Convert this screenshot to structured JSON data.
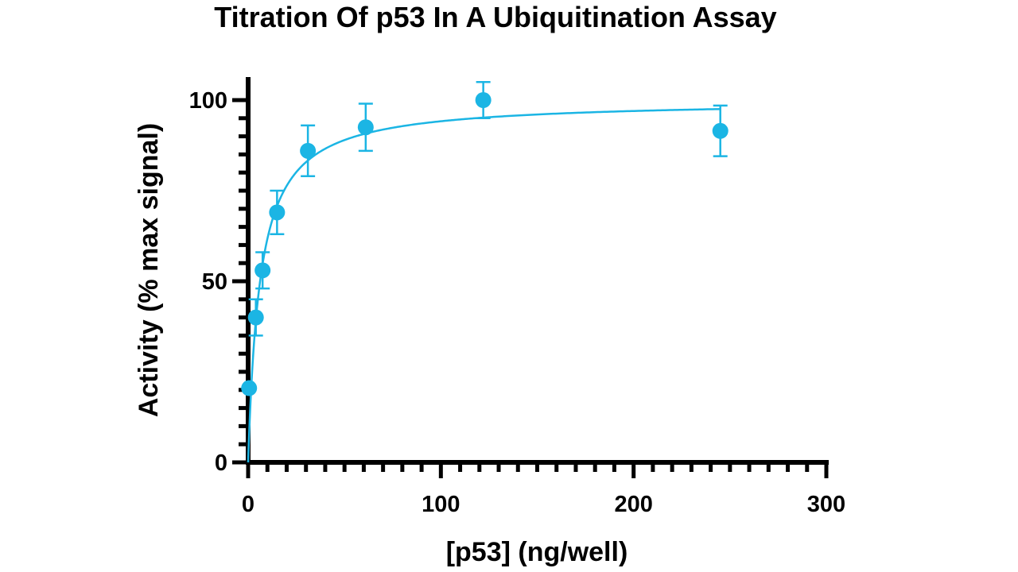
{
  "chart_data": {
    "type": "scatter",
    "title": "Titration Of p53 In A Ubiquitination Assay",
    "xlabel": "[p53] (ng/well)",
    "ylabel": "Activity (% max signal)",
    "xlim": [
      0,
      300
    ],
    "ylim": [
      0,
      100
    ],
    "x_ticks": [
      0,
      100,
      200,
      300
    ],
    "y_ticks": [
      0,
      50,
      100
    ],
    "x_tick_labels": [
      "0",
      "100",
      "200",
      "300"
    ],
    "y_tick_labels": [
      "0",
      "50",
      "100"
    ],
    "x_minor_step": 10,
    "y_minor_step": 5,
    "grid": false,
    "legend": "none",
    "color": "#1bb5e4",
    "points": [
      {
        "x": 0.5,
        "y": 20.5,
        "err": 0
      },
      {
        "x": 4,
        "y": 40,
        "err": 5
      },
      {
        "x": 7.5,
        "y": 53,
        "err": 5
      },
      {
        "x": 15,
        "y": 69,
        "err": 6
      },
      {
        "x": 31,
        "y": 86,
        "err": 7
      },
      {
        "x": 61,
        "y": 92.5,
        "err": 6.5
      },
      {
        "x": 122,
        "y": 100,
        "err": 5
      },
      {
        "x": 245,
        "y": 91.5,
        "err": 7
      }
    ],
    "fit": {
      "model": "hyperbolic",
      "top": 100,
      "half_max": 6.2
    }
  }
}
